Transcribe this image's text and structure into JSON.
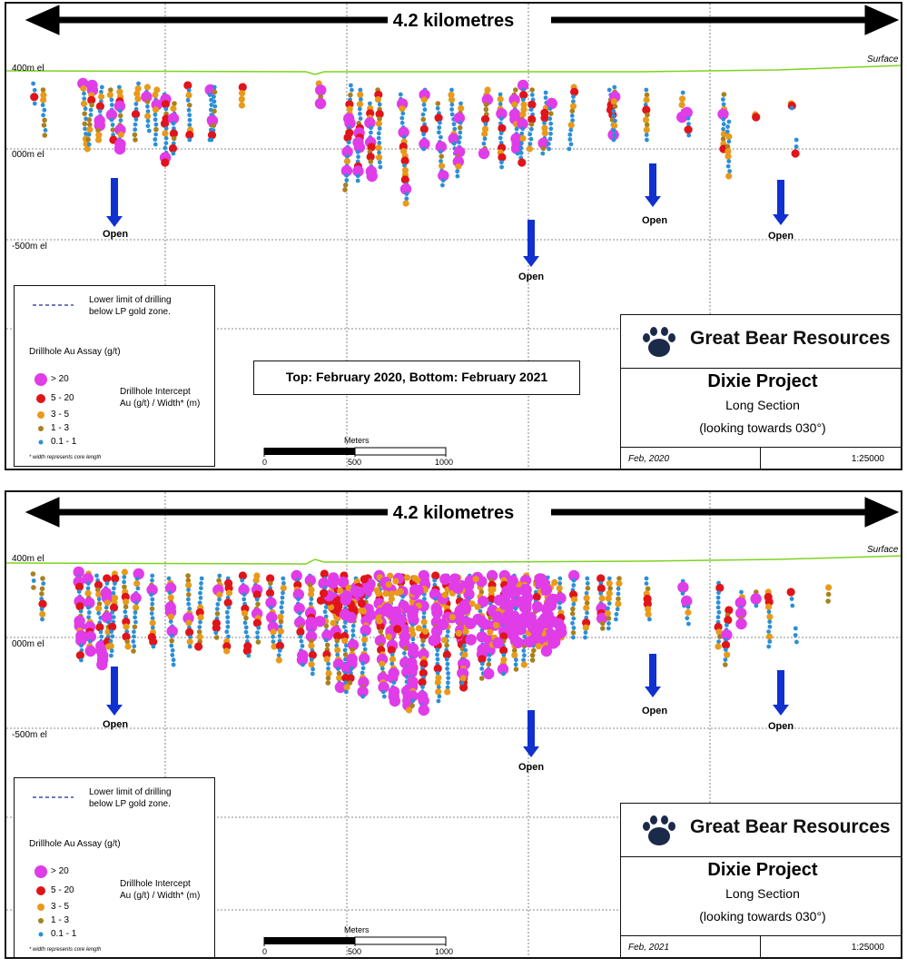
{
  "span_label": "4.2 kilometres",
  "elevation_labels": [
    "400m el",
    "000m el",
    "-500m el"
  ],
  "surface_label": "Surface",
  "open_label": "Open",
  "caption": "Top: February 2020, Bottom: February 2021",
  "legend": {
    "line_label_1": "Lower limit of drilling",
    "line_label_2": "below LP gold zone.",
    "assay_title": "Drillhole Au Assay (g/t)",
    "classes": [
      {
        "label": "> 20",
        "color": "#e03ce8"
      },
      {
        "label": "5 - 20",
        "color": "#e0141a"
      },
      {
        "label": "3 - 5",
        "color": "#e89a1a"
      },
      {
        "label": "1 - 3",
        "color": "#a8801e"
      },
      {
        "label": "0.1 - 1",
        "color": "#2b8fd6"
      }
    ],
    "intercept_1": "Drillhole Intercept",
    "intercept_2": "Au (g/t) / Width* (m)",
    "footnote": "* width represents core length"
  },
  "scalebar": {
    "title": "Meters",
    "ticks": [
      "0",
      "500",
      "1000"
    ]
  },
  "company": "Great Bear Resources",
  "project": "Dixie Project",
  "section_type": "Long Section",
  "view": "(looking towards 030°)",
  "scale": "1:25000",
  "panels": [
    {
      "date": "Feb, 2020"
    },
    {
      "date": "Feb, 2021"
    }
  ],
  "colors": {
    "surface_line": "#7ed321",
    "arrow_blue": "#1030d0",
    "high_grade": "#e03ce8",
    "grade_5_20": "#e0141a",
    "grade_3_5": "#e89a1a",
    "grade_1_3": "#a8801e",
    "grade_low": "#2b8fd6"
  }
}
